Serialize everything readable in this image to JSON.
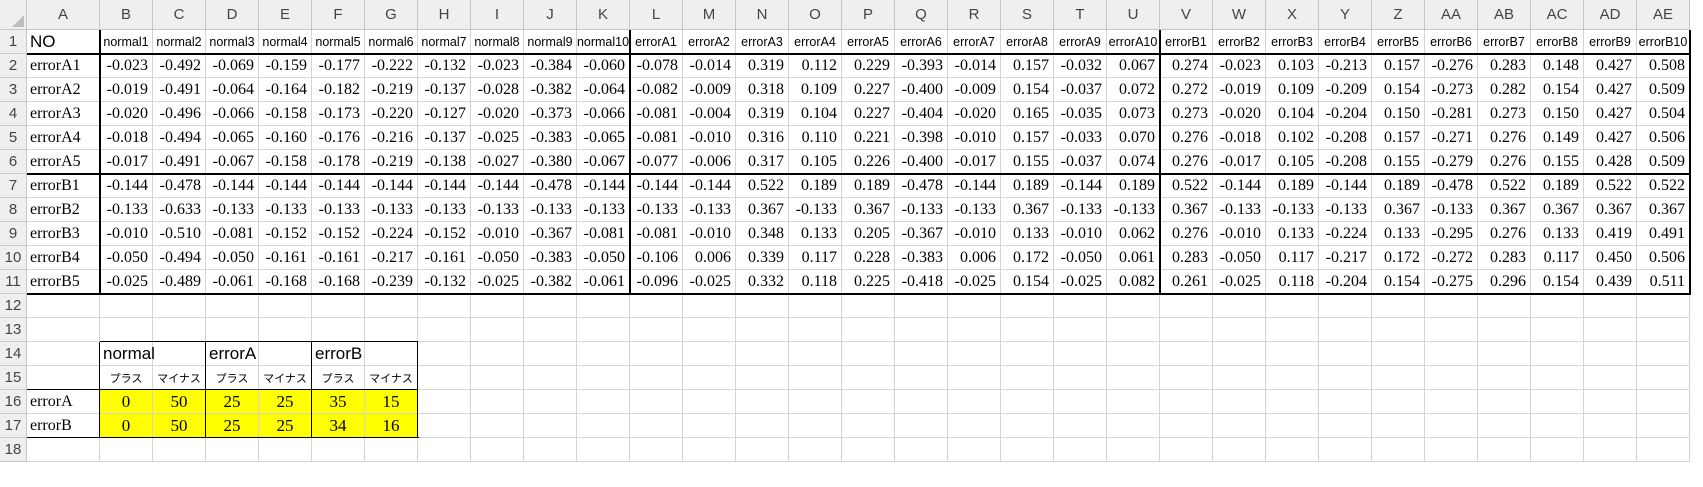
{
  "sheet": {
    "columns": [
      "A",
      "B",
      "C",
      "D",
      "E",
      "F",
      "G",
      "H",
      "I",
      "J",
      "K",
      "L",
      "M",
      "N",
      "O",
      "P",
      "Q",
      "R",
      "S",
      "T",
      "U",
      "V",
      "W",
      "X",
      "Y",
      "Z",
      "AA",
      "AB",
      "AC",
      "AD",
      "AE"
    ],
    "rows": [
      "1",
      "2",
      "3",
      "4",
      "5",
      "6",
      "7",
      "8",
      "9",
      "10",
      "11",
      "12",
      "13",
      "14",
      "15",
      "16",
      "17",
      "18"
    ],
    "header_label": "NO",
    "header_cols": [
      "normal1",
      "normal2",
      "normal3",
      "normal4",
      "normal5",
      "normal6",
      "normal7",
      "normal8",
      "normal9",
      "normal10",
      "errorA1",
      "errorA2",
      "errorA3",
      "errorA4",
      "errorA5",
      "errorA6",
      "errorA7",
      "errorA8",
      "errorA9",
      "errorA10",
      "errorB1",
      "errorB2",
      "errorB3",
      "errorB4",
      "errorB5",
      "errorB6",
      "errorB7",
      "errorB8",
      "errorB9",
      "errorB10"
    ],
    "data_rows": [
      {
        "label": "errorA1",
        "values": [
          "-0.023",
          "-0.492",
          "-0.069",
          "-0.159",
          "-0.177",
          "-0.222",
          "-0.132",
          "-0.023",
          "-0.384",
          "-0.060",
          "-0.078",
          "-0.014",
          "0.319",
          "0.112",
          "0.229",
          "-0.393",
          "-0.014",
          "0.157",
          "-0.032",
          "0.067",
          "0.274",
          "-0.023",
          "0.103",
          "-0.213",
          "0.157",
          "-0.276",
          "0.283",
          "0.148",
          "0.427",
          "0.508"
        ]
      },
      {
        "label": "errorA2",
        "values": [
          "-0.019",
          "-0.491",
          "-0.064",
          "-0.164",
          "-0.182",
          "-0.219",
          "-0.137",
          "-0.028",
          "-0.382",
          "-0.064",
          "-0.082",
          "-0.009",
          "0.318",
          "0.109",
          "0.227",
          "-0.400",
          "-0.009",
          "0.154",
          "-0.037",
          "0.072",
          "0.272",
          "-0.019",
          "0.109",
          "-0.209",
          "0.154",
          "-0.273",
          "0.282",
          "0.154",
          "0.427",
          "0.509"
        ]
      },
      {
        "label": "errorA3",
        "values": [
          "-0.020",
          "-0.496",
          "-0.066",
          "-0.158",
          "-0.173",
          "-0.220",
          "-0.127",
          "-0.020",
          "-0.373",
          "-0.066",
          "-0.081",
          "-0.004",
          "0.319",
          "0.104",
          "0.227",
          "-0.404",
          "-0.020",
          "0.165",
          "-0.035",
          "0.073",
          "0.273",
          "-0.020",
          "0.104",
          "-0.204",
          "0.150",
          "-0.281",
          "0.273",
          "0.150",
          "0.427",
          "0.504"
        ]
      },
      {
        "label": "errorA4",
        "values": [
          "-0.018",
          "-0.494",
          "-0.065",
          "-0.160",
          "-0.176",
          "-0.216",
          "-0.137",
          "-0.025",
          "-0.383",
          "-0.065",
          "-0.081",
          "-0.010",
          "0.316",
          "0.110",
          "0.221",
          "-0.398",
          "-0.010",
          "0.157",
          "-0.033",
          "0.070",
          "0.276",
          "-0.018",
          "0.102",
          "-0.208",
          "0.157",
          "-0.271",
          "0.276",
          "0.149",
          "0.427",
          "0.506"
        ]
      },
      {
        "label": "errorA5",
        "values": [
          "-0.017",
          "-0.491",
          "-0.067",
          "-0.158",
          "-0.178",
          "-0.219",
          "-0.138",
          "-0.027",
          "-0.380",
          "-0.067",
          "-0.077",
          "-0.006",
          "0.317",
          "0.105",
          "0.226",
          "-0.400",
          "-0.017",
          "0.155",
          "-0.037",
          "0.074",
          "0.276",
          "-0.017",
          "0.105",
          "-0.208",
          "0.155",
          "-0.279",
          "0.276",
          "0.155",
          "0.428",
          "0.509"
        ]
      },
      {
        "label": "errorB1",
        "values": [
          "-0.144",
          "-0.478",
          "-0.144",
          "-0.144",
          "-0.144",
          "-0.144",
          "-0.144",
          "-0.144",
          "-0.478",
          "-0.144",
          "-0.144",
          "-0.144",
          "0.522",
          "0.189",
          "0.189",
          "-0.478",
          "-0.144",
          "0.189",
          "-0.144",
          "0.189",
          "0.522",
          "-0.144",
          "0.189",
          "-0.144",
          "0.189",
          "-0.478",
          "0.522",
          "0.189",
          "0.522",
          "0.522"
        ]
      },
      {
        "label": "errorB2",
        "values": [
          "-0.133",
          "-0.633",
          "-0.133",
          "-0.133",
          "-0.133",
          "-0.133",
          "-0.133",
          "-0.133",
          "-0.133",
          "-0.133",
          "-0.133",
          "-0.133",
          "0.367",
          "-0.133",
          "0.367",
          "-0.133",
          "-0.133",
          "0.367",
          "-0.133",
          "-0.133",
          "0.367",
          "-0.133",
          "-0.133",
          "-0.133",
          "0.367",
          "-0.133",
          "0.367",
          "0.367",
          "0.367",
          "0.367"
        ]
      },
      {
        "label": "errorB3",
        "values": [
          "-0.010",
          "-0.510",
          "-0.081",
          "-0.152",
          "-0.152",
          "-0.224",
          "-0.152",
          "-0.010",
          "-0.367",
          "-0.081",
          "-0.081",
          "-0.010",
          "0.348",
          "0.133",
          "0.205",
          "-0.367",
          "-0.010",
          "0.133",
          "-0.010",
          "0.062",
          "0.276",
          "-0.010",
          "0.133",
          "-0.224",
          "0.133",
          "-0.295",
          "0.276",
          "0.133",
          "0.419",
          "0.491"
        ]
      },
      {
        "label": "errorB4",
        "values": [
          "-0.050",
          "-0.494",
          "-0.050",
          "-0.161",
          "-0.161",
          "-0.217",
          "-0.161",
          "-0.050",
          "-0.383",
          "-0.050",
          "-0.106",
          "0.006",
          "0.339",
          "0.117",
          "0.228",
          "-0.383",
          "0.006",
          "0.172",
          "-0.050",
          "0.061",
          "0.283",
          "-0.050",
          "0.117",
          "-0.217",
          "0.172",
          "-0.272",
          "0.283",
          "0.117",
          "0.450",
          "0.506"
        ]
      },
      {
        "label": "errorB5",
        "values": [
          "-0.025",
          "-0.489",
          "-0.061",
          "-0.168",
          "-0.168",
          "-0.239",
          "-0.132",
          "-0.025",
          "-0.382",
          "-0.061",
          "-0.096",
          "-0.025",
          "0.332",
          "0.118",
          "0.225",
          "-0.418",
          "-0.025",
          "0.154",
          "-0.025",
          "0.082",
          "0.261",
          "-0.025",
          "0.118",
          "-0.204",
          "0.154",
          "-0.275",
          "0.296",
          "0.154",
          "0.439",
          "0.511"
        ]
      }
    ],
    "summary": {
      "groups": [
        "normal",
        "errorA",
        "errorB"
      ],
      "subheaders": [
        "プラス",
        "マイナス",
        "プラス",
        "マイナス",
        "プラス",
        "マイナス"
      ],
      "rows": [
        {
          "label": "errorA",
          "values": [
            "0",
            "50",
            "25",
            "25",
            "35",
            "15"
          ]
        },
        {
          "label": "errorB",
          "values": [
            "0",
            "50",
            "25",
            "25",
            "34",
            "16"
          ]
        }
      ],
      "highlight_color": "#ffff00"
    }
  }
}
